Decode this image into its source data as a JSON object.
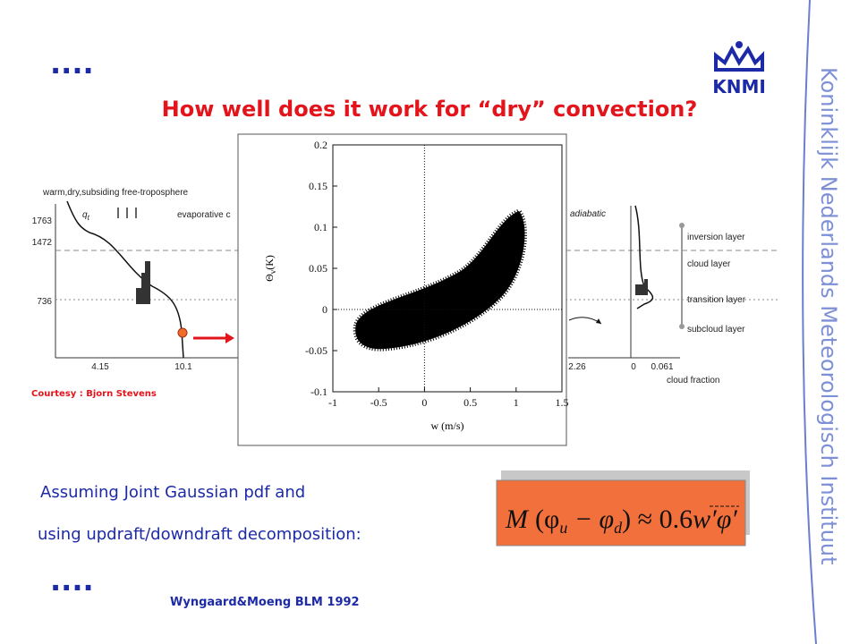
{
  "header": {
    "dots": "....",
    "title": "How well does it work for “dry” convection?",
    "logo": "KNMI",
    "side": "Koninklijk Nederlands Meteorologisch Instituut"
  },
  "background_figure": {
    "top_label": "warm,dry,subsiding free-troposphere",
    "evap_label": "evaporative c",
    "qt_label": "q",
    "qt_sub": "t",
    "adiabatic_label": "adiabatic",
    "height_labels": [
      "1763",
      "1472",
      "736"
    ],
    "left_x_labels": [
      "4.15",
      "10.1"
    ],
    "right_x_labels": [
      "2.26",
      "0",
      "0.061"
    ],
    "cloud_fraction": "cloud fraction",
    "layers": [
      "inversion layer",
      "cloud layer",
      "transition layer",
      "subcloud layer"
    ],
    "credit": "Courtesy : Bjorn Stevens"
  },
  "chart_data": {
    "type": "scatter",
    "xlabel": "w (m/s)",
    "ylabel_symbol": "Θ",
    "ylabel_sub": "v",
    "ylabel_unit": "(K)",
    "xlim": [
      -1,
      1.5
    ],
    "ylim": [
      -0.1,
      0.2
    ],
    "xticks": [
      -1,
      -0.5,
      0,
      0.5,
      1,
      1.5
    ],
    "yticks": [
      -0.1,
      -0.05,
      0,
      0.05,
      0.1,
      0.15,
      0.2
    ]
  },
  "body": {
    "line1": "Assuming Joint Gaussian pdf and",
    "line2": "using updraft/downdraft decomposition:",
    "formula": [
      "M",
      "(φ",
      "u",
      " − φ",
      "d",
      ")",
      " ≈ 0.6",
      "w′φ′"
    ],
    "dots": "....",
    "reference": "Wyngaard&Moeng BLM 1992"
  }
}
